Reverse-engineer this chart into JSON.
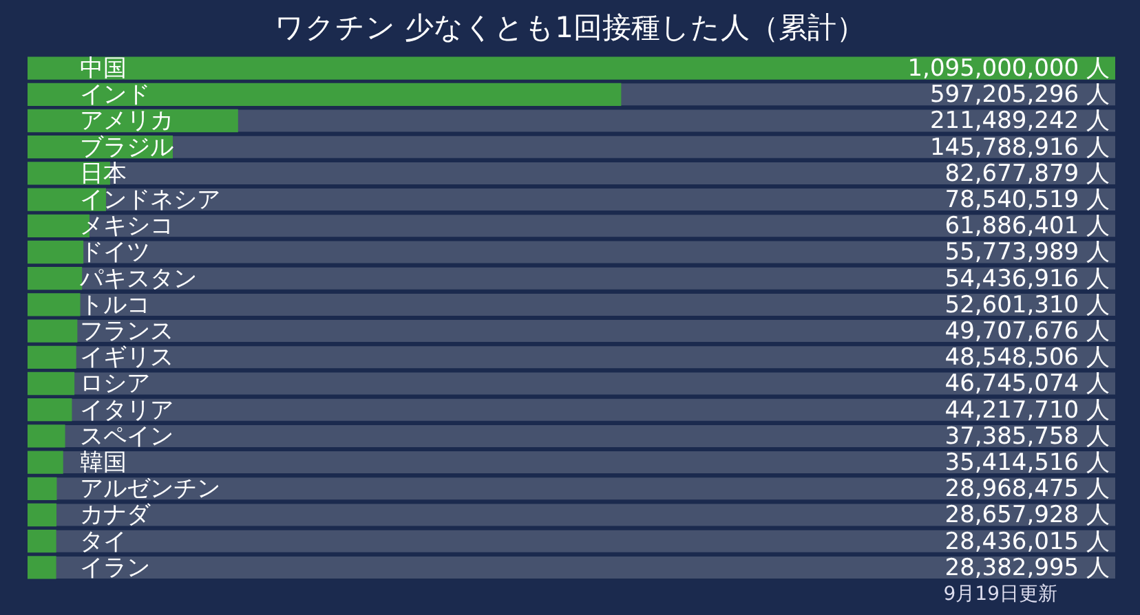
{
  "chart_data": {
    "type": "bar",
    "orientation": "horizontal",
    "title": "ワクチン 少なくとも1回接種した人（累計）",
    "categories": [
      "中国",
      "インド",
      "アメリカ",
      "ブラジル",
      "日本",
      "インドネシア",
      "メキシコ",
      "ドイツ",
      "パキスタン",
      "トルコ",
      "フランス",
      "イギリス",
      "ロシア",
      "イタリア",
      "スペイン",
      "韓国",
      "アルゼンチン",
      "カナダ",
      "タイ",
      "イラン"
    ],
    "values": [
      1095000000,
      597205296,
      211489242,
      145788916,
      82677879,
      78540519,
      61886401,
      55773989,
      54436916,
      52601310,
      49707676,
      48548506,
      46745074,
      44217710,
      37385758,
      35414516,
      28968475,
      28657928,
      28436015,
      28382995
    ],
    "value_labels": [
      "1,095,000,000 人",
      "597,205,296 人",
      "211,489,242 人",
      "145,788,916 人",
      "82,677,879 人",
      "78,540,519 人",
      "61,886,401 人",
      "55,773,989 人",
      "54,436,916 人",
      "52,601,310 人",
      "49,707,676 人",
      "48,548,506 人",
      "46,745,074 人",
      "44,217,710 人",
      "37,385,758 人",
      "35,414,516 人",
      "28,968,475 人",
      "28,657,928 人",
      "28,436,015 人",
      "28,382,995 人"
    ],
    "color": "#3f9f3f",
    "xlim": [
      0,
      1095000000
    ],
    "tick_labels": "y",
    "legend": false,
    "annotations": [
      "9月19日更新"
    ]
  }
}
